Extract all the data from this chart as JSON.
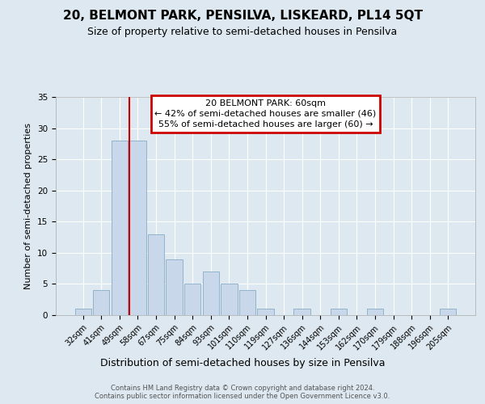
{
  "title": "20, BELMONT PARK, PENSILVA, LISKEARD, PL14 5QT",
  "subtitle": "Size of property relative to semi-detached houses in Pensilva",
  "xlabel": "Distribution of semi-detached houses by size in Pensilva",
  "ylabel": "Number of semi-detached properties",
  "bin_labels": [
    "32sqm",
    "41sqm",
    "49sqm",
    "58sqm",
    "67sqm",
    "75sqm",
    "84sqm",
    "93sqm",
    "101sqm",
    "110sqm",
    "119sqm",
    "127sqm",
    "136sqm",
    "144sqm",
    "153sqm",
    "162sqm",
    "170sqm",
    "179sqm",
    "188sqm",
    "196sqm",
    "205sqm"
  ],
  "bin_values": [
    1,
    4,
    28,
    28,
    13,
    9,
    5,
    7,
    5,
    4,
    1,
    0,
    1,
    0,
    1,
    0,
    1,
    0,
    0,
    0,
    1
  ],
  "bar_color": "#c8d8ea",
  "bar_edge_color": "#92b4cc",
  "vline_color": "#cc0000",
  "vline_x": 2.55,
  "annotation_title": "20 BELMONT PARK: 60sqm",
  "annotation_line1": "← 42% of semi-detached houses are smaller (46)",
  "annotation_line2": "55% of semi-detached houses are larger (60) →",
  "annotation_box_color": "#cc0000",
  "ylim": [
    0,
    35
  ],
  "yticks": [
    0,
    5,
    10,
    15,
    20,
    25,
    30,
    35
  ],
  "footer1": "Contains HM Land Registry data © Crown copyright and database right 2024.",
  "footer2": "Contains public sector information licensed under the Open Government Licence v3.0.",
  "background_color": "#dde8f0",
  "plot_bg_color": "#dde8f0",
  "grid_color": "#ffffff",
  "title_fontsize": 11,
  "subtitle_fontsize": 9,
  "ylabel_fontsize": 8,
  "xlabel_fontsize": 9,
  "tick_fontsize": 7,
  "annotation_fontsize": 8,
  "footer_fontsize": 6
}
